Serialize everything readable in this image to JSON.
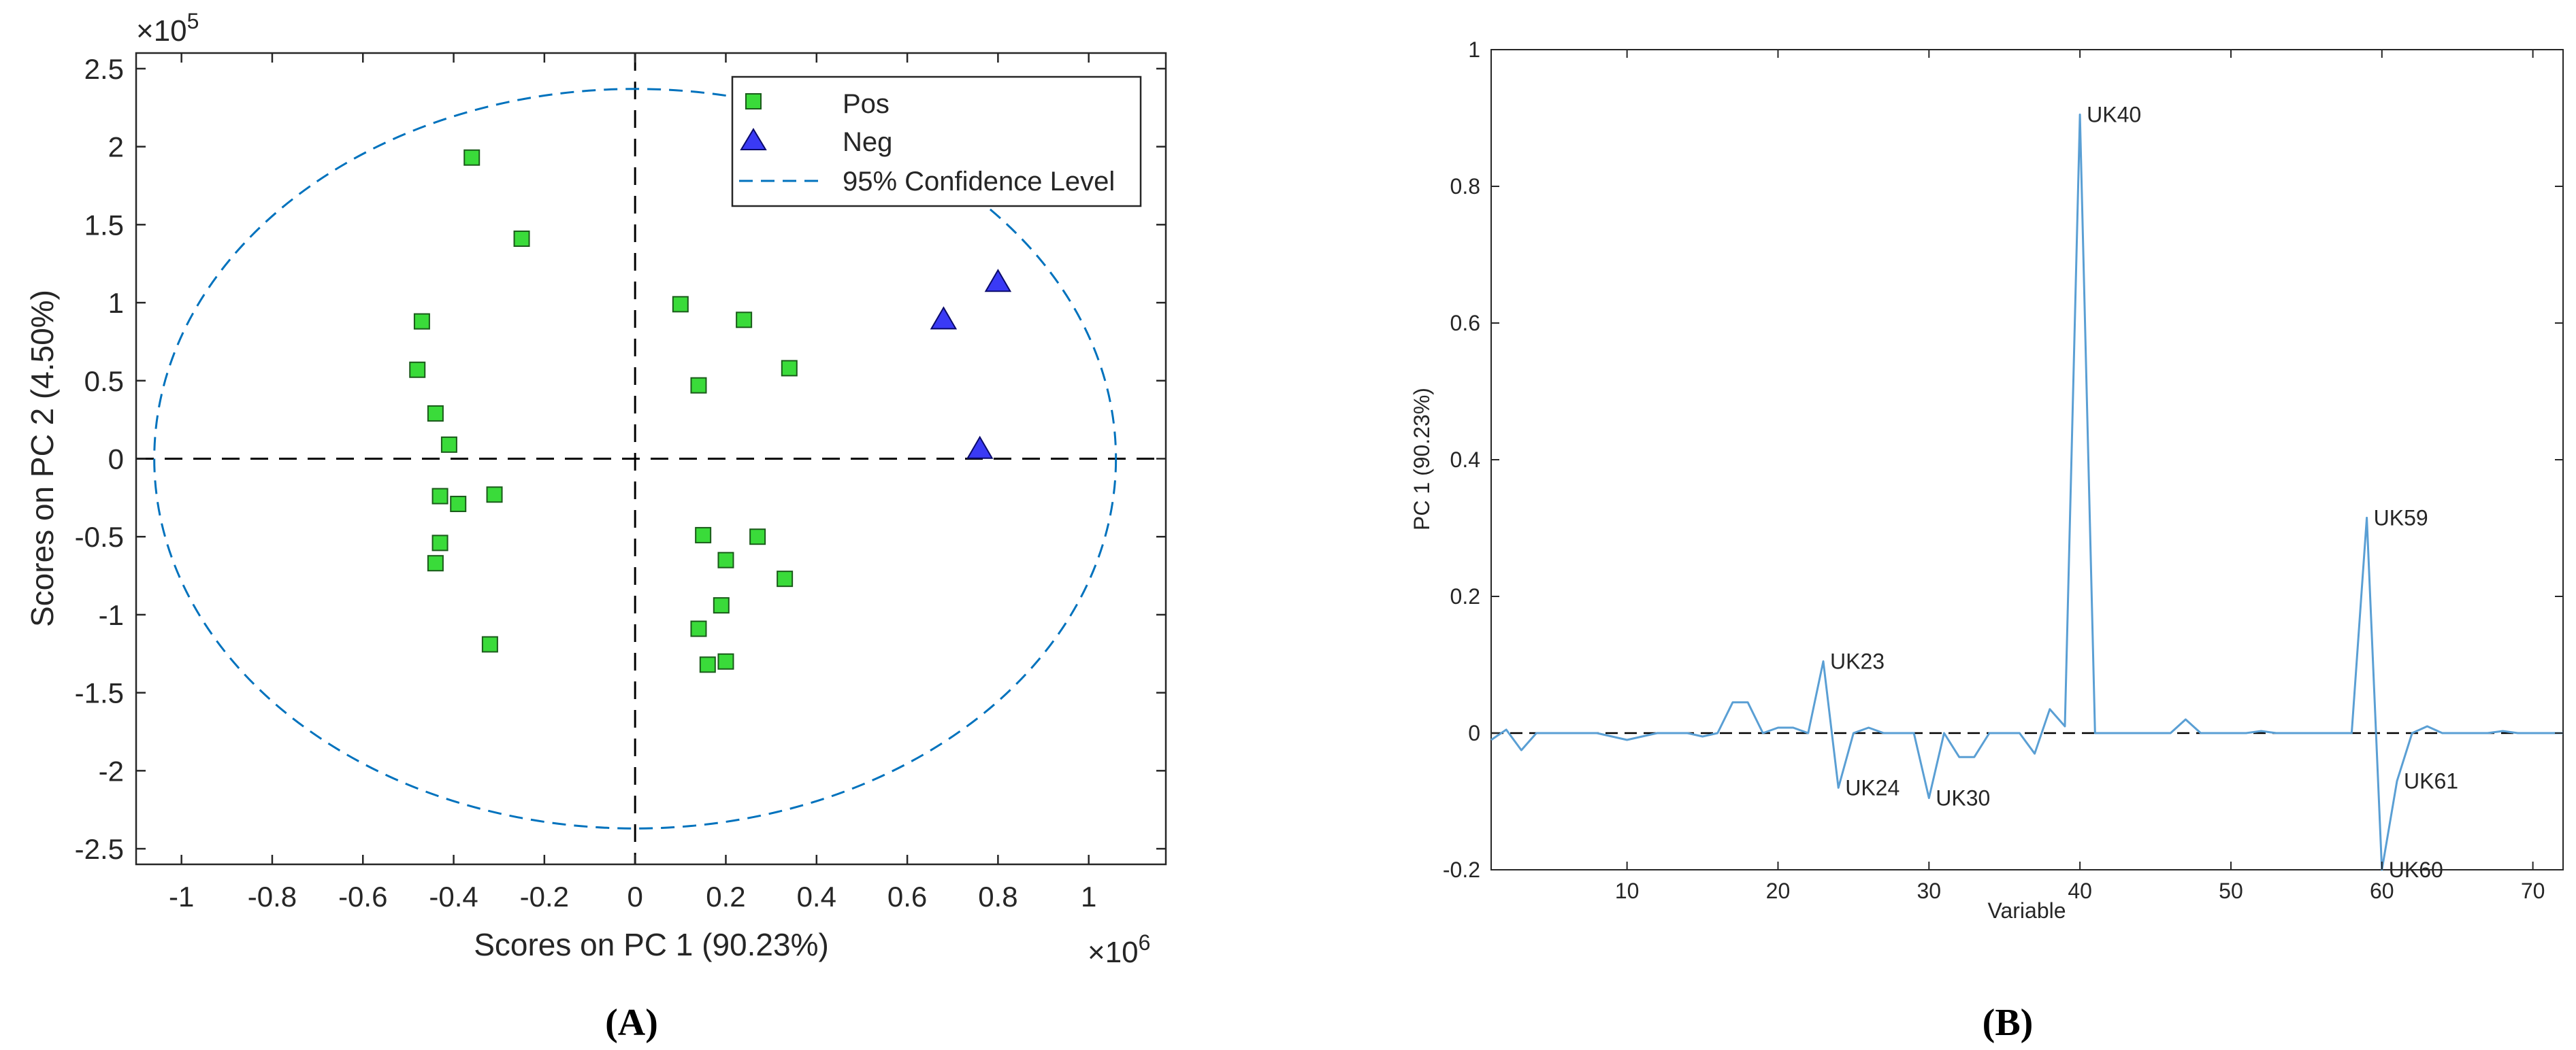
{
  "chart_data": [
    {
      "panel": "A",
      "type": "scatter",
      "panel_label": "A",
      "xlabel": "Scores on PC 1 (90.23%)",
      "ylabel": "Scores on PC 2 (4.50%)",
      "x_multiplier_label": "×10",
      "x_multiplier_exp": "6",
      "y_multiplier_label": "×10",
      "y_multiplier_exp": "5",
      "xlim": [
        -1.1,
        1.17
      ],
      "ylim": [
        -2.6,
        2.6
      ],
      "xticks": [
        -1,
        -0.8,
        -0.6,
        -0.4,
        -0.2,
        0,
        0.2,
        0.4,
        0.6,
        0.8,
        1
      ],
      "xtick_labels": [
        "-1",
        "-0.8",
        "-0.6",
        "-0.4",
        "-0.2",
        "0",
        "0.2",
        "0.4",
        "0.6",
        "0.8",
        "1"
      ],
      "yticks": [
        2.5,
        2,
        1.5,
        1,
        0.5,
        0,
        -0.5,
        -1,
        -1.5,
        -2,
        -2.5
      ],
      "ytick_labels": [
        "2.5",
        "2",
        "1.5",
        "1",
        "0.5",
        "0",
        "-0.5",
        "-1",
        "-1.5",
        "-2",
        "-2.5"
      ],
      "legend": [
        "Pos",
        "Neg",
        "95% Confidence Level"
      ],
      "legend_position": "top-right",
      "ellipse": {
        "rx": 1.06,
        "ry": 2.37,
        "color": "#0072BD"
      },
      "series": [
        {
          "name": "Pos",
          "marker": "square",
          "color": "#3ADB3A",
          "x": [
            -0.36,
            -0.25,
            -0.47,
            -0.48,
            -0.44,
            -0.41,
            -0.43,
            -0.39,
            -0.31,
            -0.43,
            -0.44,
            -0.32,
            0.1,
            0.24,
            0.34,
            0.14,
            0.15,
            0.27,
            0.2,
            0.33,
            0.19,
            0.14,
            0.2,
            0.16
          ],
          "y": [
            1.93,
            1.41,
            0.88,
            0.57,
            0.29,
            0.09,
            -0.24,
            -0.29,
            -0.23,
            -0.54,
            -0.67,
            -1.19,
            0.99,
            0.89,
            0.58,
            0.47,
            -0.49,
            -0.5,
            -0.65,
            -0.77,
            -0.94,
            -1.09,
            -1.3,
            -1.32
          ]
        },
        {
          "name": "Neg",
          "marker": "triangle",
          "color": "#3A3AF5",
          "x": [
            0.68,
            0.8,
            0.76
          ],
          "y": [
            0.89,
            1.13,
            0.06
          ]
        }
      ]
    },
    {
      "panel": "B",
      "type": "line",
      "panel_label": "B",
      "xlabel": "Variable",
      "ylabel": "PC 1 (90.23%)",
      "xlim": [
        1,
        72
      ],
      "ylim": [
        -0.2,
        1
      ],
      "xticks": [
        10,
        20,
        30,
        40,
        50,
        60,
        70
      ],
      "xtick_labels": [
        "10",
        "20",
        "30",
        "40",
        "50",
        "60",
        "70"
      ],
      "yticks": [
        1,
        0.8,
        0.6,
        0.4,
        0.2,
        0,
        -0.2
      ],
      "ytick_labels": [
        "1",
        "0.8",
        "0.6",
        "0.4",
        "0.2",
        "0",
        "-0.2"
      ],
      "color": "#5A9FD4",
      "x": [
        1,
        2,
        3,
        4,
        5,
        6,
        7,
        8,
        9,
        10,
        11,
        12,
        13,
        14,
        15,
        16,
        17,
        18,
        19,
        20,
        21,
        22,
        23,
        24,
        25,
        26,
        27,
        28,
        29,
        30,
        31,
        32,
        33,
        34,
        35,
        36,
        37,
        38,
        39,
        40,
        41,
        42,
        43,
        44,
        45,
        46,
        47,
        48,
        49,
        50,
        51,
        52,
        53,
        54,
        55,
        56,
        57,
        58,
        59,
        60,
        61,
        62,
        63,
        64,
        65,
        66,
        67,
        68,
        69,
        70,
        71,
        72
      ],
      "y": [
        -0.01,
        0.005,
        -0.025,
        0,
        0,
        0,
        0,
        0,
        -0.005,
        -0.01,
        -0.005,
        0,
        0,
        0,
        -0.005,
        0,
        0.045,
        0.045,
        0,
        0.008,
        0.008,
        0,
        0.105,
        -0.08,
        0,
        0.008,
        0,
        0,
        0,
        -0.095,
        0,
        -0.035,
        -0.035,
        0,
        0,
        0,
        -0.03,
        0.035,
        0.01,
        0.905,
        0,
        0,
        0,
        0,
        0,
        0,
        0.02,
        0,
        0,
        0,
        0,
        0.003,
        0,
        0,
        0,
        0,
        0,
        0,
        0.315,
        -0.2,
        -0.07,
        0,
        0.01,
        0,
        0,
        0,
        0,
        0.003,
        0,
        0,
        0,
        0
      ],
      "annotations": [
        {
          "x": 23,
          "y": 0.105,
          "text": "UK23"
        },
        {
          "x": 24,
          "y": -0.08,
          "text": "UK24"
        },
        {
          "x": 30,
          "y": -0.095,
          "text": "UK30"
        },
        {
          "x": 40,
          "y": 0.905,
          "text": "UK40"
        },
        {
          "x": 59,
          "y": 0.315,
          "text": "UK59"
        },
        {
          "x": 61,
          "y": -0.07,
          "text": "UK61"
        },
        {
          "x": 60,
          "y": -0.2,
          "text": "UK60"
        }
      ]
    }
  ]
}
